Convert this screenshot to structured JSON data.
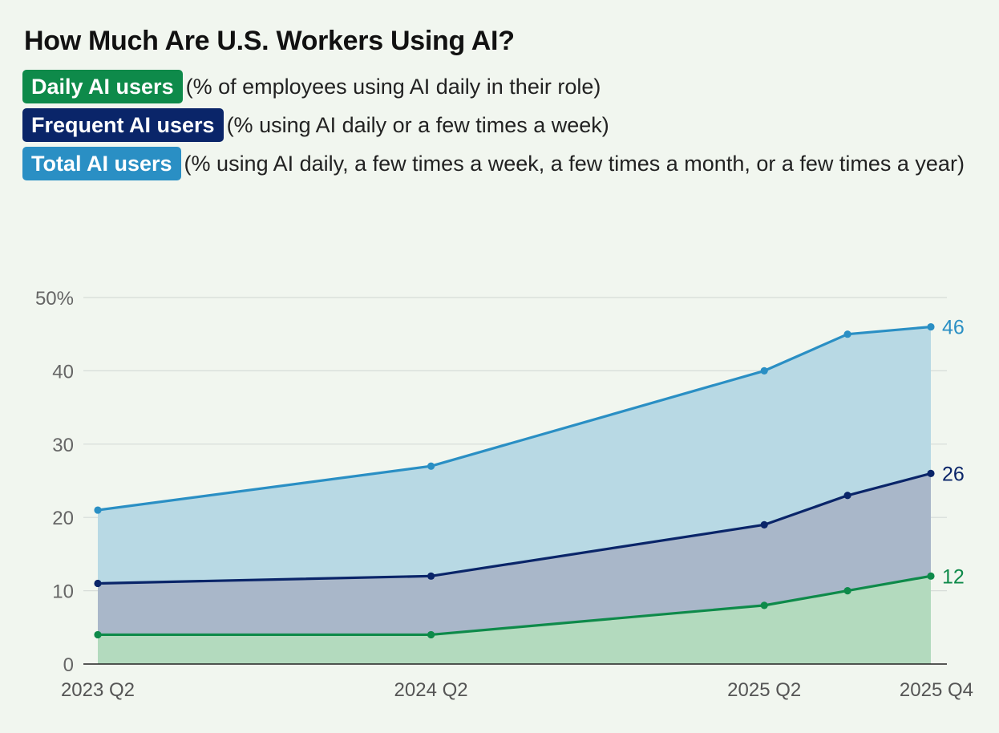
{
  "title": "How Much Are U.S. Workers Using AI?",
  "legend": [
    {
      "label": "Daily AI users",
      "desc": "(% of employees using AI daily in their role)"
    },
    {
      "label": "Frequent AI users",
      "desc": "(% using AI daily or a few times a week)"
    },
    {
      "label": "Total AI users",
      "desc": "(% using AI daily, a few times a week, a few times a month, or a few times a year)"
    }
  ],
  "colors": {
    "total": "#2a8fc4",
    "frequent": "#0a2569",
    "daily": "#0e8a4a",
    "total_fill": "#b8d9e4",
    "frequent_fill": "#a9b7c9",
    "daily_fill": "#b3dabe",
    "grid": "#d6dcd8",
    "axis": "#222222"
  },
  "chart_data": {
    "type": "area",
    "title": "How Much Are U.S. Workers Using AI?",
    "xlabel": "",
    "ylabel": "",
    "ylim": [
      0,
      50
    ],
    "yticks": [
      0,
      10,
      20,
      30,
      40,
      50
    ],
    "ytick_labels": [
      "0",
      "10",
      "20",
      "30",
      "40",
      "50%"
    ],
    "x": [
      0,
      4,
      8,
      9,
      10
    ],
    "x_tick_positions": [
      0,
      4,
      8,
      10
    ],
    "x_tick_labels": [
      "2023 Q2",
      "2024 Q2",
      "2025 Q2",
      "2025 Q4"
    ],
    "series": [
      {
        "name": "Total AI users",
        "key": "total",
        "values": [
          21,
          27,
          40,
          45,
          46
        ],
        "end_label": "46"
      },
      {
        "name": "Frequent AI users",
        "key": "frequent",
        "values": [
          11,
          12,
          19,
          23,
          26
        ],
        "end_label": "26"
      },
      {
        "name": "Daily AI users",
        "key": "daily",
        "values": [
          4,
          4,
          8,
          10,
          12
        ],
        "end_label": "12"
      }
    ]
  }
}
